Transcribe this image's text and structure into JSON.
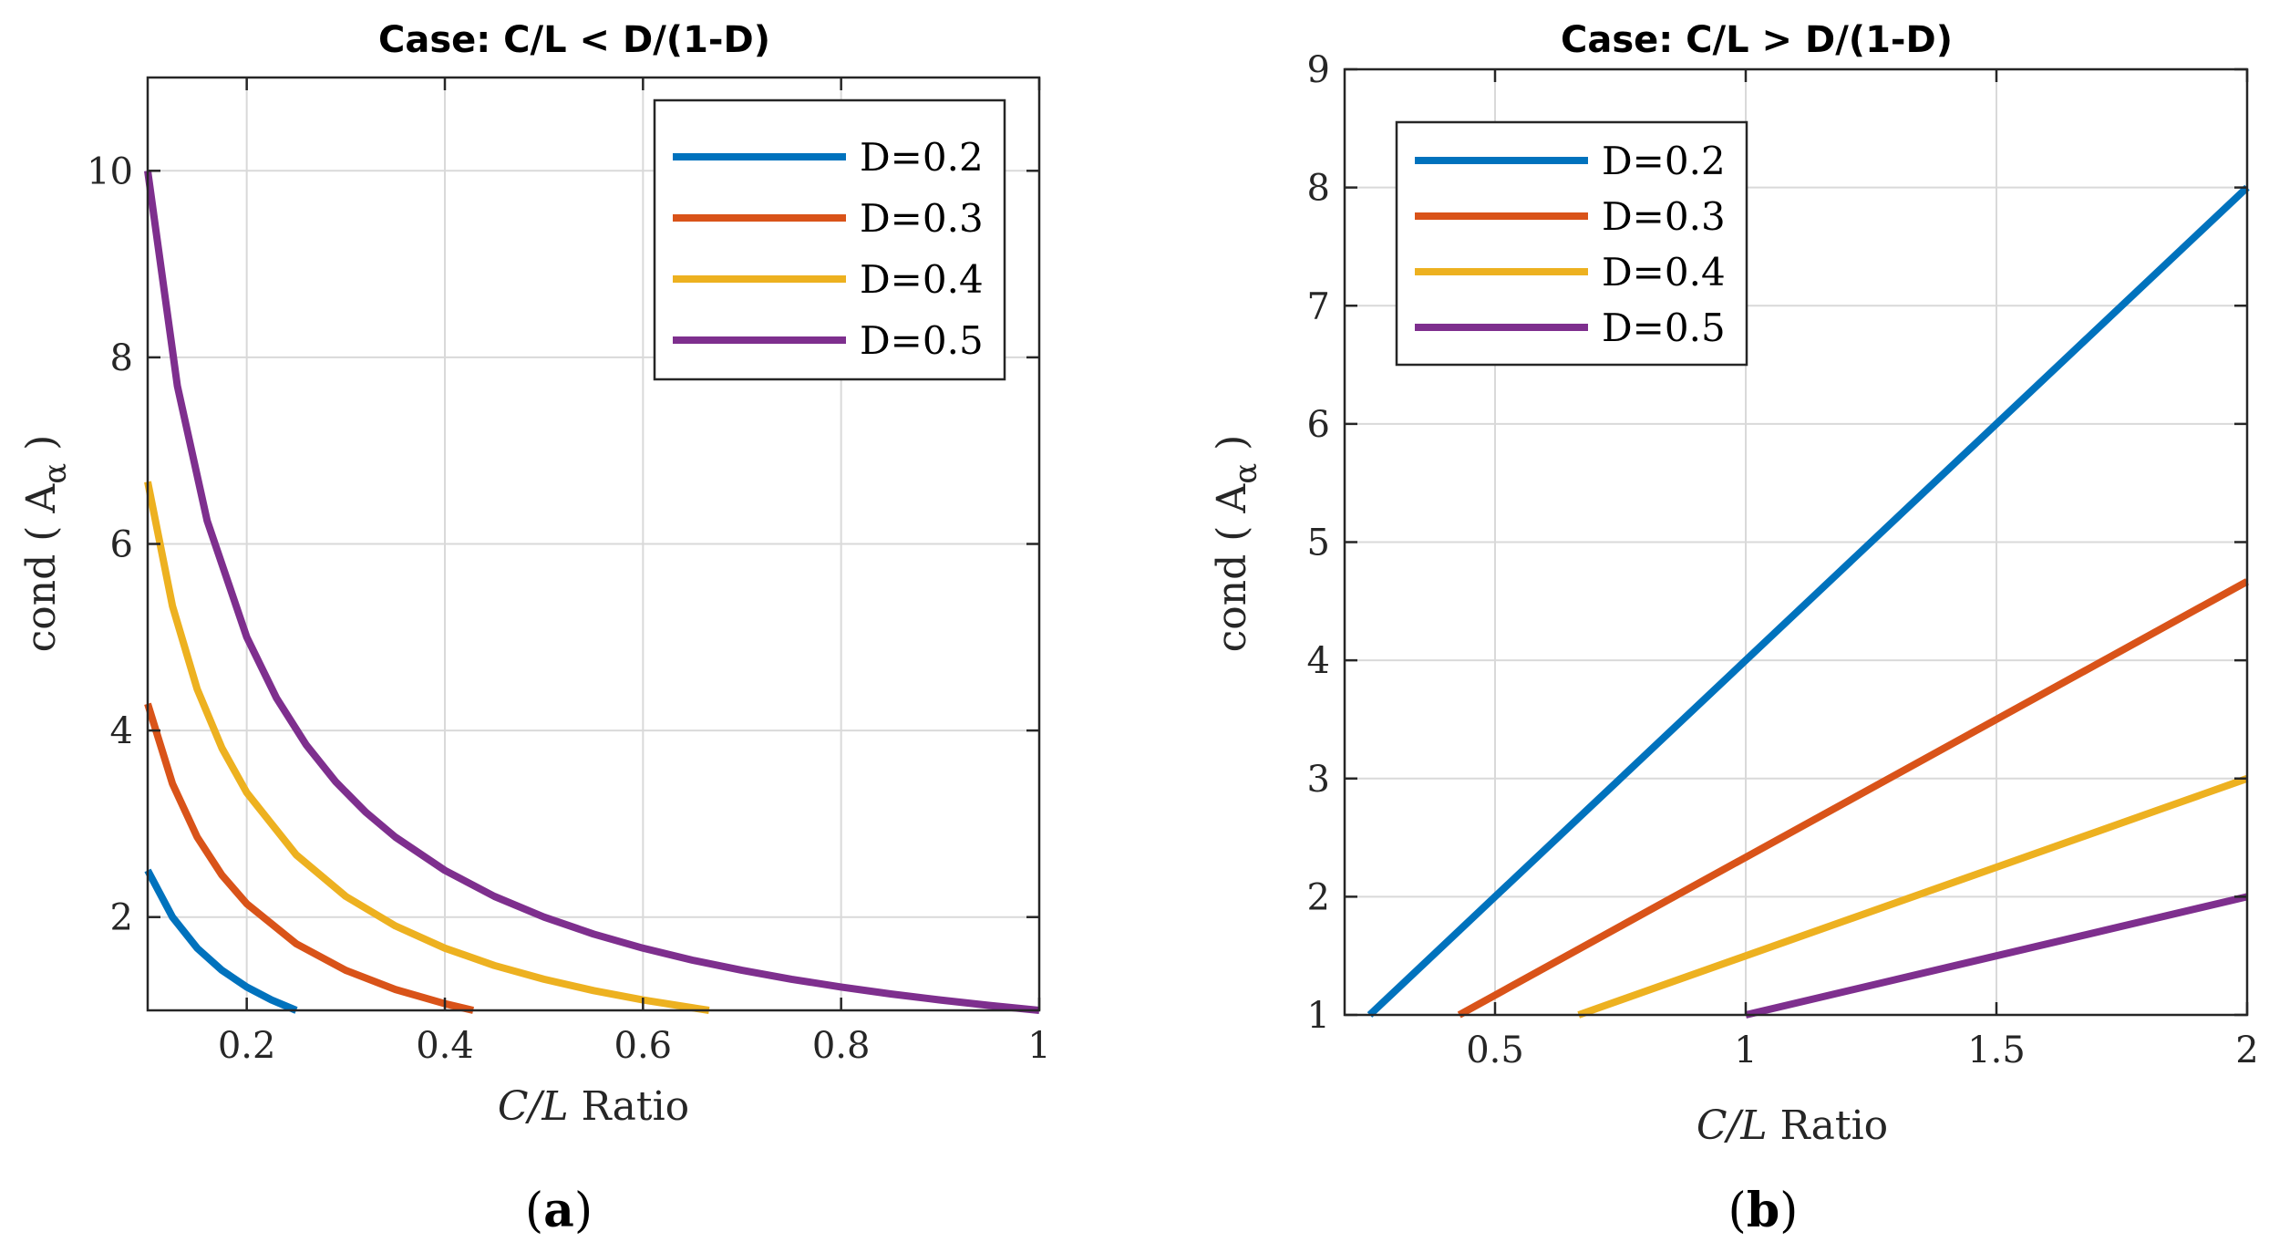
{
  "chart_data": [
    {
      "type": "line",
      "panel_label": "(a)",
      "panel_letter": "a",
      "title": "Case: C/L < D/(1-D)",
      "xlabel_italic": "C/L",
      "xlabel_rest": " Ratio",
      "ylabel": "cond ( A",
      "ylabel_sub": "α",
      "ylabel_close": " )",
      "xlim": [
        0.1,
        1
      ],
      "ylim": [
        1,
        11
      ],
      "xticks": [
        0.2,
        0.4,
        0.6,
        0.8,
        1
      ],
      "xtick_labels": [
        "0.2",
        "0.4",
        "0.6",
        "0.8",
        "1"
      ],
      "yticks": [
        2,
        4,
        6,
        8,
        10
      ],
      "ytick_labels": [
        "2",
        "4",
        "6",
        "8",
        "10"
      ],
      "grid": true,
      "legend_position": "top-right",
      "series": [
        {
          "name": "D=0.2",
          "color": "#0072BD",
          "x": [
            0.1,
            0.125,
            0.15,
            0.175,
            0.2,
            0.225,
            0.25
          ],
          "y": [
            2.5,
            2.0,
            1.667,
            1.429,
            1.25,
            1.111,
            1.0
          ]
        },
        {
          "name": "D=0.3",
          "color": "#D95319",
          "x": [
            0.1,
            0.125,
            0.15,
            0.175,
            0.2,
            0.25,
            0.3,
            0.35,
            0.4,
            0.4286
          ],
          "y": [
            4.286,
            3.429,
            2.857,
            2.449,
            2.143,
            1.714,
            1.429,
            1.224,
            1.071,
            1.0
          ]
        },
        {
          "name": "D=0.4",
          "color": "#EDB120",
          "x": [
            0.1,
            0.125,
            0.15,
            0.175,
            0.2,
            0.25,
            0.3,
            0.35,
            0.4,
            0.45,
            0.5,
            0.55,
            0.6,
            0.6667
          ],
          "y": [
            6.667,
            5.333,
            4.444,
            3.81,
            3.333,
            2.667,
            2.222,
            1.905,
            1.667,
            1.481,
            1.333,
            1.212,
            1.111,
            1.0
          ]
        },
        {
          "name": "D=0.5",
          "color": "#7E2F8E",
          "x": [
            0.1,
            0.13,
            0.16,
            0.2,
            0.23,
            0.26,
            0.29,
            0.32,
            0.35,
            0.4,
            0.45,
            0.5,
            0.55,
            0.6,
            0.65,
            0.7,
            0.75,
            0.8,
            0.85,
            0.9,
            0.95,
            1.0
          ],
          "y": [
            10.0,
            7.692,
            6.25,
            5.0,
            4.348,
            3.846,
            3.448,
            3.125,
            2.857,
            2.5,
            2.222,
            2.0,
            1.818,
            1.667,
            1.538,
            1.429,
            1.333,
            1.25,
            1.176,
            1.111,
            1.053,
            1.0
          ]
        }
      ]
    },
    {
      "type": "line",
      "panel_label": "(b)",
      "panel_letter": "b",
      "title": "Case: C/L > D/(1-D)",
      "xlabel_italic": "C/L",
      "xlabel_rest": " Ratio",
      "ylabel": "cond ( A",
      "ylabel_sub": "α",
      "ylabel_close": " )",
      "xlim": [
        0.2,
        2
      ],
      "ylim": [
        1,
        9
      ],
      "xticks": [
        0.5,
        1,
        1.5,
        2
      ],
      "xtick_labels": [
        "0.5",
        "1",
        "1.5",
        "2"
      ],
      "yticks": [
        1,
        2,
        3,
        4,
        5,
        6,
        7,
        8,
        9
      ],
      "ytick_labels": [
        "1",
        "2",
        "3",
        "4",
        "5",
        "6",
        "7",
        "8",
        "9"
      ],
      "grid": true,
      "legend_position": "top-left",
      "series": [
        {
          "name": "D=0.2",
          "color": "#0072BD",
          "x": [
            0.25,
            2
          ],
          "y": [
            1,
            8
          ]
        },
        {
          "name": "D=0.3",
          "color": "#D95319",
          "x": [
            0.4286,
            2
          ],
          "y": [
            1,
            4.667
          ]
        },
        {
          "name": "D=0.4",
          "color": "#EDB120",
          "x": [
            0.6667,
            2
          ],
          "y": [
            1,
            3
          ]
        },
        {
          "name": "D=0.5",
          "color": "#7E2F8E",
          "x": [
            1,
            2
          ],
          "y": [
            1,
            2
          ]
        }
      ]
    }
  ]
}
